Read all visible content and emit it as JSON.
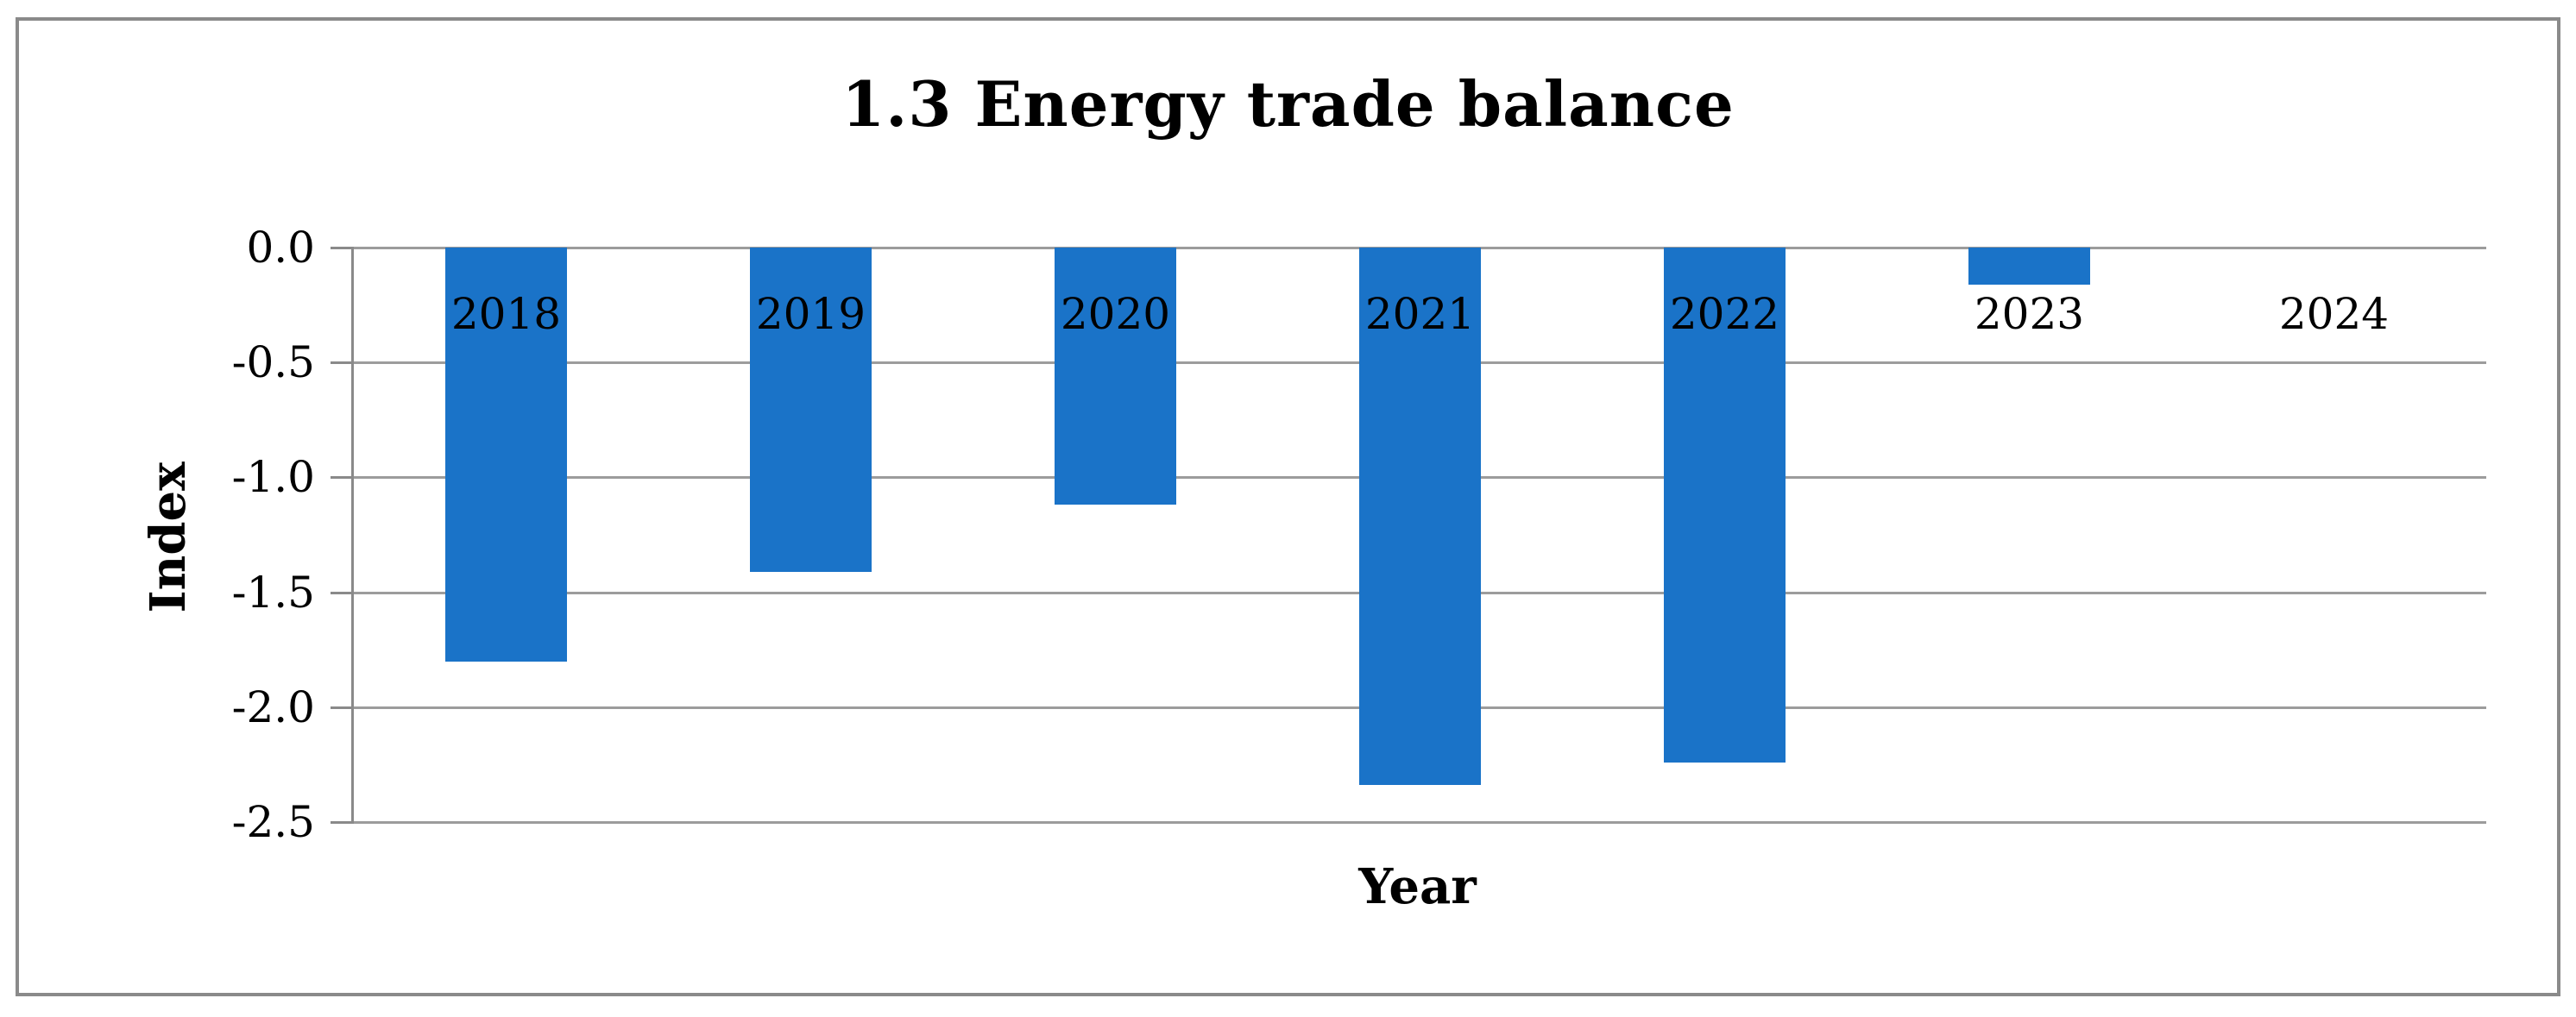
{
  "figure": {
    "title": "1.3 Energy trade balance"
  },
  "chart_data": {
    "type": "bar",
    "title": "1.3 Energy trade balance",
    "xlabel": "Year",
    "ylabel": "Index",
    "categories": [
      "2018",
      "2019",
      "2020",
      "2021",
      "2022",
      "2023",
      "2024"
    ],
    "values": [
      -1.8,
      -1.41,
      -1.12,
      -2.34,
      -2.24,
      -0.16,
      0.0
    ],
    "ylim": [
      -2.5,
      0.0
    ],
    "yticks": [
      0.0,
      -0.5,
      -1.0,
      -1.5,
      -2.0,
      -2.5
    ],
    "ytick_labels": [
      "0.0",
      "-0.5",
      "-1.0",
      "-1.5",
      "-2.0",
      "-2.5"
    ],
    "grid": true,
    "legend": false,
    "gap_width_ratio": 0.4,
    "bar_color": "#1a73c8",
    "gridline_color": "#9c9c9c",
    "axis_color": "#8a8a8a",
    "frame_color": "#8a8a8a",
    "text_color": "#000000"
  }
}
